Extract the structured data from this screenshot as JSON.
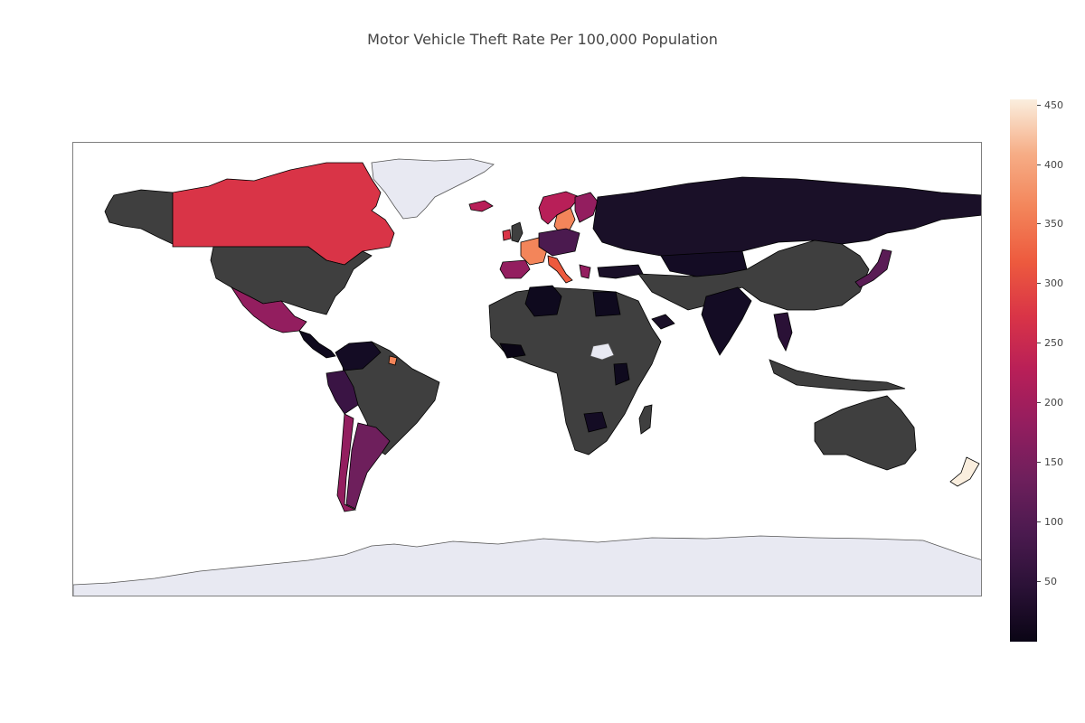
{
  "title": "Motor Vehicle Theft Rate Per 100,000 Population",
  "colors": {
    "no_data_land": "#3f3f3f",
    "missing_area": "#e8e9f2",
    "border": "#000000",
    "frame": "#7f7f7f"
  },
  "colorbar": {
    "min": 0,
    "max": 455,
    "ticks": [
      {
        "value": 50,
        "label": "50"
      },
      {
        "value": 100,
        "label": "100"
      },
      {
        "value": 150,
        "label": "150"
      },
      {
        "value": 200,
        "label": "200"
      },
      {
        "value": 250,
        "label": "250"
      },
      {
        "value": 300,
        "label": "300"
      },
      {
        "value": 350,
        "label": "350"
      },
      {
        "value": 400,
        "label": "400"
      },
      {
        "value": 450,
        "label": "450"
      }
    ],
    "scale": [
      "#0a0515",
      "#2a1136",
      "#4b1a4f",
      "#6e1f5c",
      "#931e5f",
      "#b81f58",
      "#d93447",
      "#ed5a3e",
      "#f3855a",
      "#f6ad86",
      "#faeede"
    ]
  },
  "chart_data": {
    "type": "choropleth",
    "title": "Motor Vehicle Theft Rate Per 100,000 Population",
    "regions": [
      {
        "name": "Canada",
        "value": 275
      },
      {
        "name": "Mexico",
        "value": 175
      },
      {
        "name": "Central America",
        "value": 35
      },
      {
        "name": "Colombia",
        "value": 25
      },
      {
        "name": "Peru",
        "value": 60
      },
      {
        "name": "Chile",
        "value": 170
      },
      {
        "name": "Argentina",
        "value": 135
      },
      {
        "name": "Guiana",
        "value": 330
      },
      {
        "name": "France",
        "value": 345
      },
      {
        "name": "Spain",
        "value": 150
      },
      {
        "name": "Italy",
        "value": 340
      },
      {
        "name": "Iceland",
        "value": 240
      },
      {
        "name": "Ireland",
        "value": 280
      },
      {
        "name": "Sweden",
        "value": 370
      },
      {
        "name": "Norway",
        "value": 220
      },
      {
        "name": "Finland",
        "value": 180
      },
      {
        "name": "Svalbard",
        "value": 220
      },
      {
        "name": "Germany",
        "value": 70
      },
      {
        "name": "Poland",
        "value": 55
      },
      {
        "name": "Greece",
        "value": 160
      },
      {
        "name": "Russia",
        "value": 25
      },
      {
        "name": "Kazakhstan",
        "value": 20
      },
      {
        "name": "Turkey",
        "value": 15
      },
      {
        "name": "Libya",
        "value": 5
      },
      {
        "name": "Egypt",
        "value": 10
      },
      {
        "name": "West Africa",
        "value": 5
      },
      {
        "name": "Kenya",
        "value": 10
      },
      {
        "name": "Zambia",
        "value": 25
      },
      {
        "name": "India",
        "value": 20
      },
      {
        "name": "Yemen",
        "value": 15
      },
      {
        "name": "Thailand",
        "value": 30
      },
      {
        "name": "Japan",
        "value": 110
      },
      {
        "name": "New Zealand",
        "value": 455
      }
    ]
  }
}
